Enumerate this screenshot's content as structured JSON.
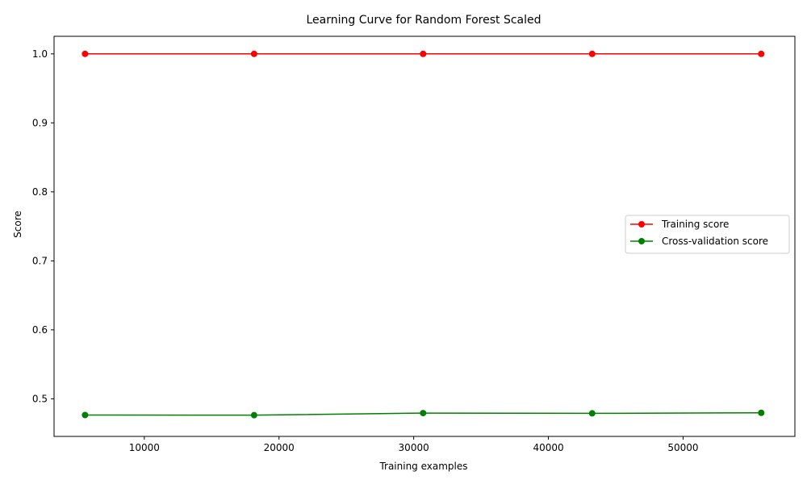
{
  "chart_data": {
    "type": "line",
    "title": "Learning Curve for Random Forest Scaled",
    "xlabel": "Training examples",
    "ylabel": "Score",
    "xlim": [
      3300,
      58300
    ],
    "ylim": [
      0.4455,
      1.0255
    ],
    "xticks": [
      10000,
      20000,
      30000,
      40000,
      50000
    ],
    "xtick_labels": [
      "10000",
      "20000",
      "30000",
      "40000",
      "50000"
    ],
    "yticks": [
      0.5,
      0.6,
      0.7,
      0.8,
      0.9,
      1.0
    ],
    "ytick_labels": [
      "0.5",
      "0.6",
      "0.7",
      "0.8",
      "0.9",
      "1.0"
    ],
    "grid": false,
    "legend_position": "center-right",
    "x": [
      5600,
      18150,
      30700,
      43250,
      55800
    ],
    "series": [
      {
        "name": "Training score",
        "color": "#ff0000",
        "values": [
          1.0,
          1.0,
          1.0,
          1.0,
          1.0
        ]
      },
      {
        "name": "Cross-validation score",
        "color": "#008000",
        "values": [
          0.4765,
          0.4763,
          0.4793,
          0.4789,
          0.4797
        ]
      }
    ]
  }
}
